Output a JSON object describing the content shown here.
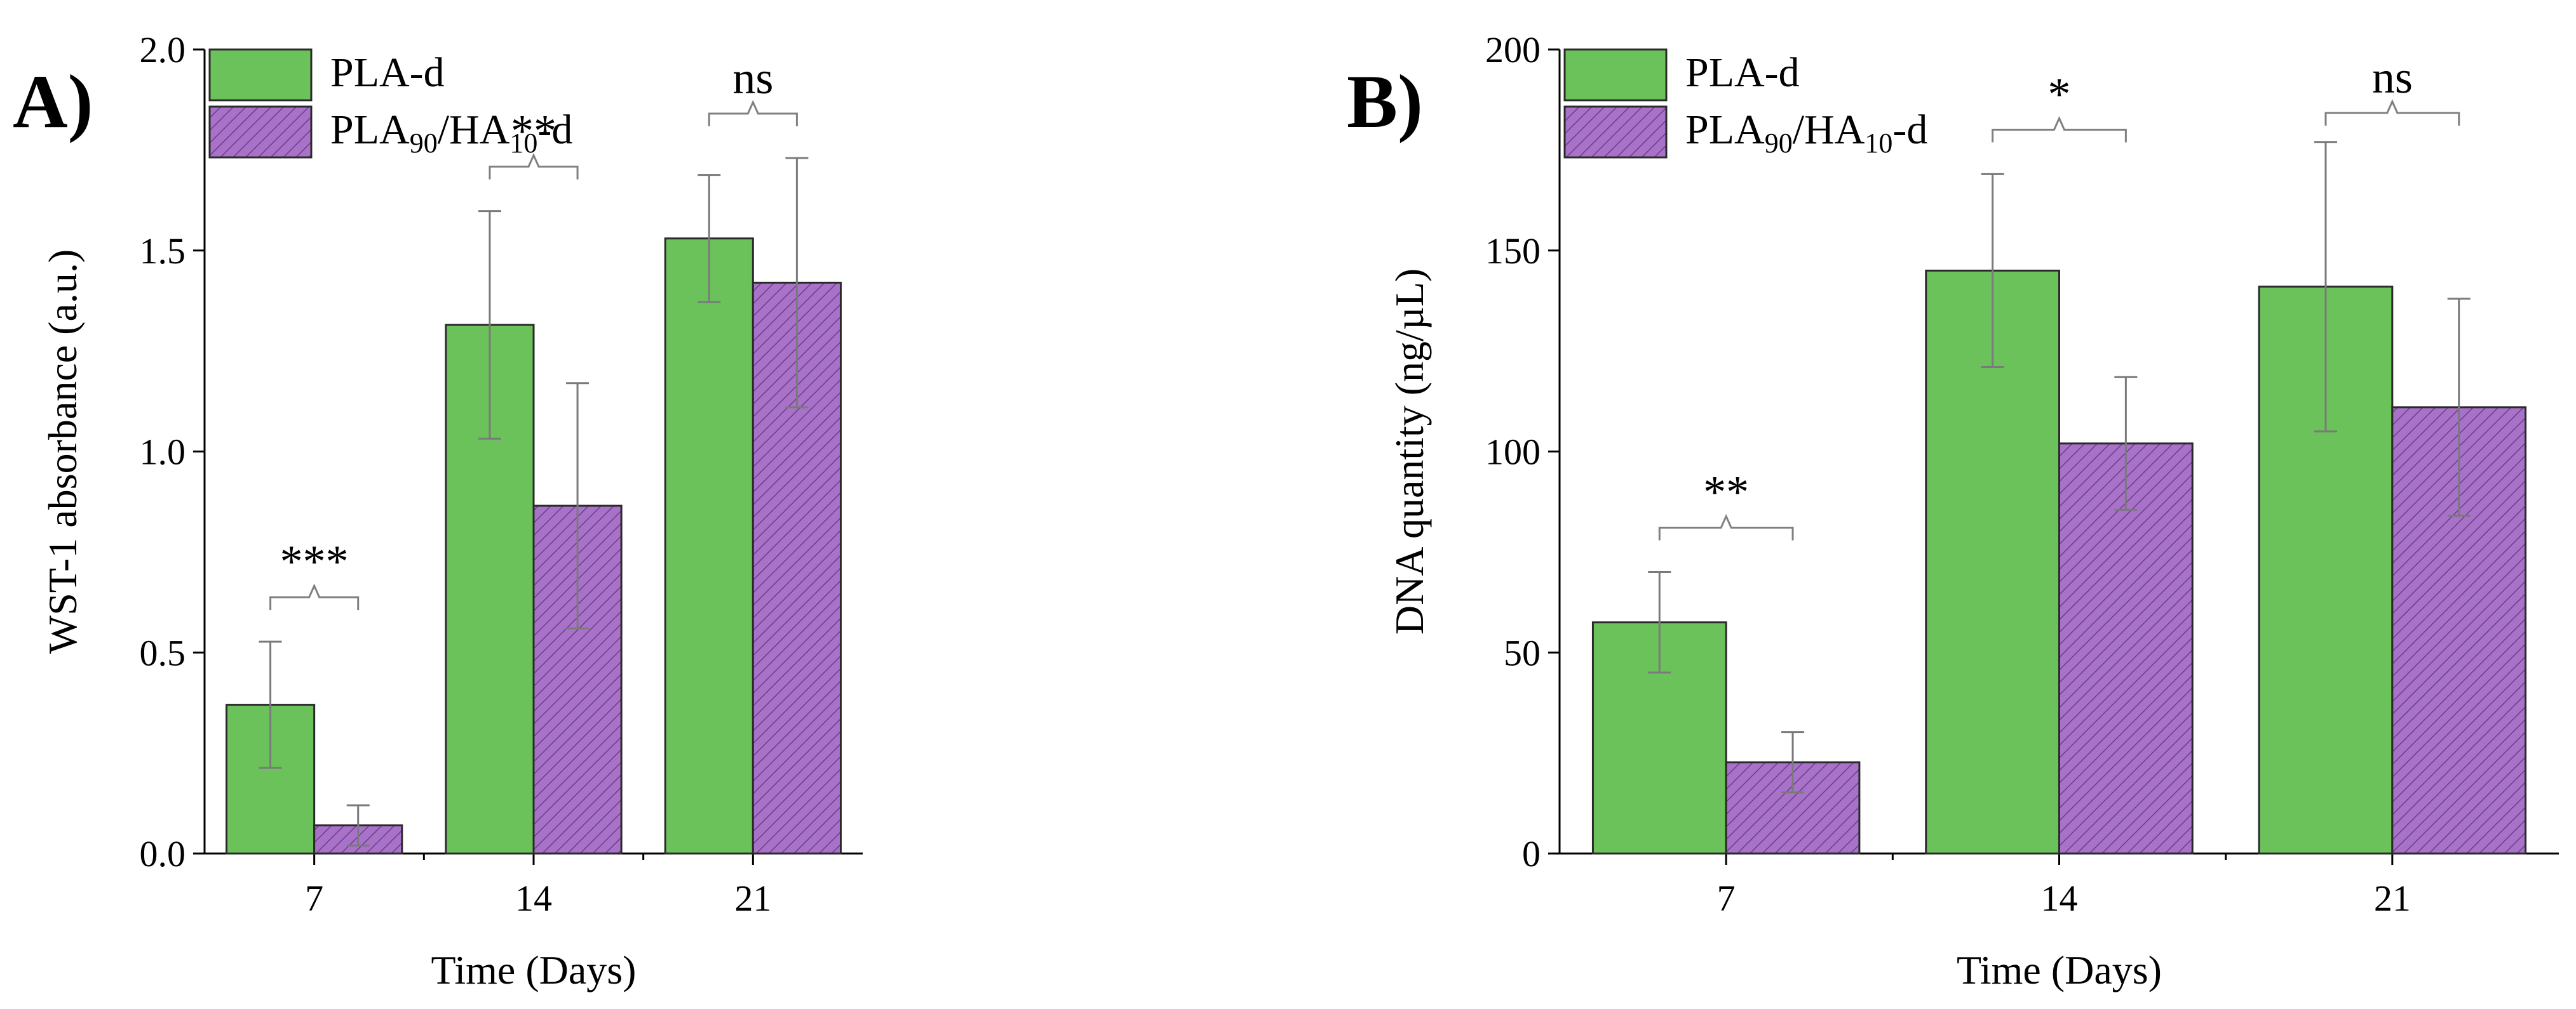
{
  "chart_data": [
    {
      "type": "bar",
      "panel_label": "A)",
      "categories": [
        "7",
        "14",
        "21"
      ],
      "series": [
        {
          "name": "PLA-d",
          "color": "#6cc25a",
          "values": [
            0.37,
            1.315,
            1.53
          ],
          "errors": [
            0.157,
            0.283,
            0.158
          ]
        },
        {
          "name": "PLA90/HA10-d",
          "color": "#a872c8",
          "hatched": true,
          "values": [
            0.07,
            0.865,
            1.42
          ],
          "errors": [
            0.05,
            0.305,
            0.31
          ]
        }
      ],
      "legend_labels": [
        {
          "base": "PLA-d"
        },
        {
          "p1": "PLA",
          "sub1": "90",
          "p2": "/HA",
          "sub2": "10",
          "p3": "-d"
        }
      ],
      "significance": [
        "***",
        "**",
        "ns"
      ],
      "xlabel": "Time (Days)",
      "ylabel": "WST-1 absorbance (a.u.)",
      "ylim": [
        0,
        2.0
      ],
      "yticks": [
        0.0,
        0.5,
        1.0,
        1.5,
        2.0
      ],
      "ytick_labels": [
        "0.0",
        "0.5",
        "1.0",
        "1.5",
        "2.0"
      ],
      "legend_position": "top-left",
      "grid": false
    },
    {
      "type": "bar",
      "panel_label": "B)",
      "categories": [
        "7",
        "14",
        "21"
      ],
      "series": [
        {
          "name": "PLA-d",
          "color": "#6cc25a",
          "values": [
            57.5,
            145,
            141
          ],
          "errors": [
            12.5,
            24,
            36
          ]
        },
        {
          "name": "PLA90/HA10-d",
          "color": "#a872c8",
          "hatched": true,
          "values": [
            22.7,
            102,
            111
          ],
          "errors": [
            7.5,
            16.5,
            27
          ]
        }
      ],
      "legend_labels": [
        {
          "base": "PLA-d"
        },
        {
          "p1": "PLA",
          "sub1": "90",
          "p2": "/HA",
          "sub2": "10",
          "p3": "-d"
        }
      ],
      "significance": [
        "**",
        "*",
        "ns"
      ],
      "xlabel": "Time (Days)",
      "ylabel": "DNA quantity (ng/µL)",
      "ylim": [
        0,
        200
      ],
      "yticks": [
        0,
        50,
        100,
        150,
        200
      ],
      "ytick_labels": [
        "0",
        "50",
        "100",
        "150",
        "200"
      ],
      "legend_position": "top-left",
      "grid": false
    }
  ]
}
